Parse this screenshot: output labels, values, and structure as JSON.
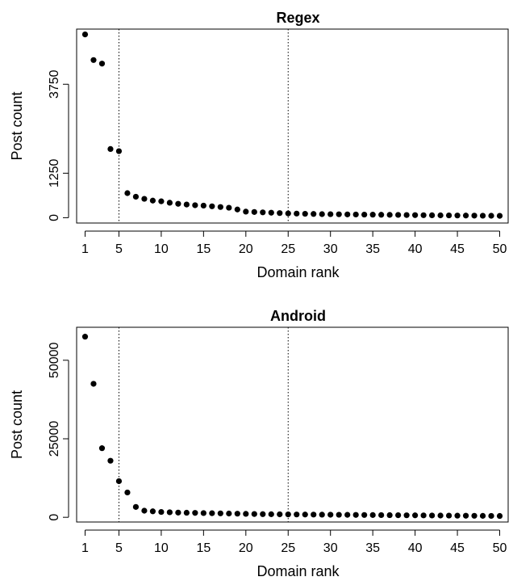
{
  "chart_data": [
    {
      "type": "scatter",
      "title": "Regex",
      "xlabel": "Domain rank",
      "ylabel": "Post count",
      "xlim": [
        0,
        51
      ],
      "ylim": [
        -150,
        5300
      ],
      "xticks": [
        1,
        5,
        10,
        15,
        20,
        25,
        30,
        35,
        40,
        45,
        50
      ],
      "yticks": [
        0,
        1250,
        3750
      ],
      "vlines": [
        5,
        25
      ],
      "grid": false,
      "legend": "none",
      "x": [
        1,
        2,
        3,
        4,
        5,
        6,
        7,
        8,
        9,
        10,
        11,
        12,
        13,
        14,
        15,
        16,
        17,
        18,
        19,
        20,
        21,
        22,
        23,
        24,
        25,
        26,
        27,
        28,
        29,
        30,
        31,
        32,
        33,
        34,
        35,
        36,
        37,
        38,
        39,
        40,
        41,
        42,
        43,
        44,
        45,
        46,
        47,
        48,
        49,
        50
      ],
      "y": [
        5150,
        4430,
        4330,
        1930,
        1870,
        690,
        590,
        530,
        480,
        460,
        420,
        390,
        370,
        350,
        340,
        320,
        300,
        280,
        230,
        170,
        160,
        150,
        140,
        130,
        120,
        115,
        110,
        105,
        100,
        98,
        95,
        92,
        90,
        87,
        85,
        82,
        80,
        78,
        75,
        72,
        70,
        68,
        66,
        64,
        62,
        60,
        58,
        56,
        54,
        52
      ]
    },
    {
      "type": "scatter",
      "title": "Android",
      "xlabel": "Domain rank",
      "ylabel": "Post count",
      "xlim": [
        0,
        51
      ],
      "ylim": [
        -1500,
        60500
      ],
      "xticks": [
        1,
        5,
        10,
        15,
        20,
        25,
        30,
        35,
        40,
        45,
        50
      ],
      "yticks": [
        0,
        25000,
        50000
      ],
      "vlines": [
        5,
        25
      ],
      "grid": false,
      "legend": "none",
      "x": [
        1,
        2,
        3,
        4,
        5,
        6,
        7,
        8,
        9,
        10,
        11,
        12,
        13,
        14,
        15,
        16,
        17,
        18,
        19,
        20,
        21,
        22,
        23,
        24,
        25,
        26,
        27,
        28,
        29,
        30,
        31,
        32,
        33,
        34,
        35,
        36,
        37,
        38,
        39,
        40,
        41,
        42,
        43,
        44,
        45,
        46,
        47,
        48,
        49,
        50
      ],
      "y": [
        57500,
        42500,
        22000,
        18000,
        11500,
        7900,
        3300,
        2100,
        1900,
        1700,
        1600,
        1500,
        1450,
        1400,
        1350,
        1300,
        1250,
        1200,
        1150,
        1100,
        1050,
        1000,
        980,
        950,
        920,
        900,
        880,
        860,
        840,
        820,
        800,
        780,
        760,
        740,
        720,
        700,
        680,
        660,
        640,
        620,
        600,
        580,
        560,
        540,
        520,
        500,
        480,
        460,
        440,
        420
      ]
    }
  ]
}
